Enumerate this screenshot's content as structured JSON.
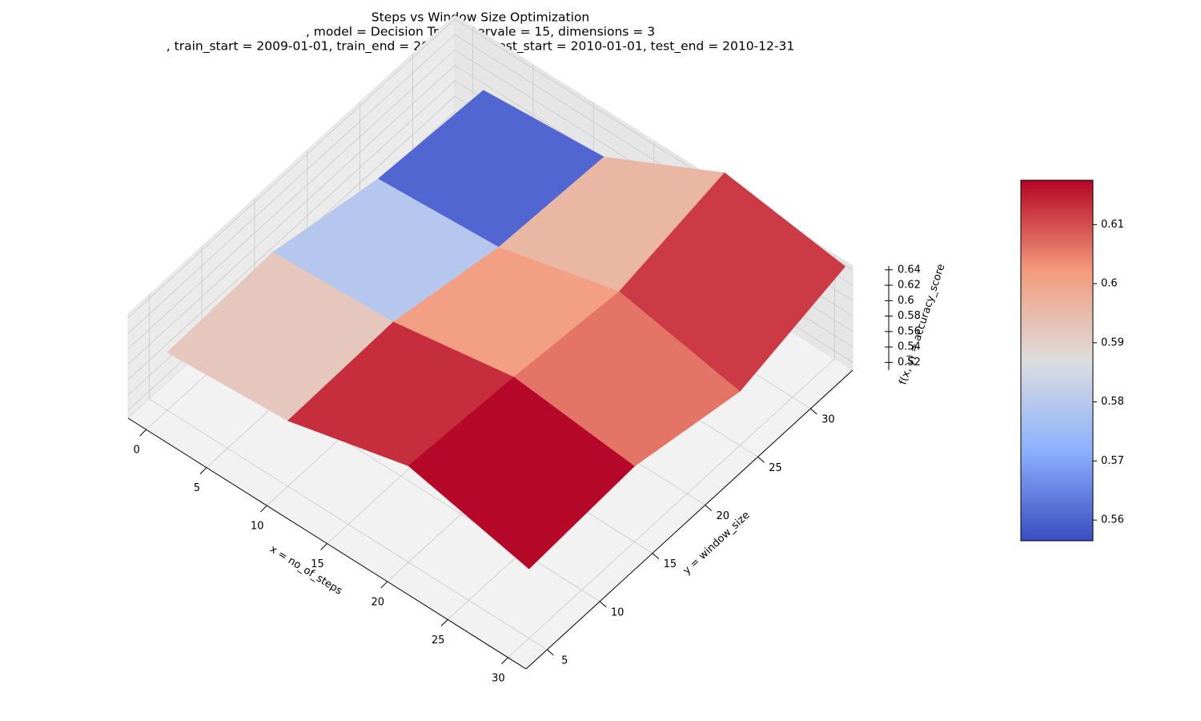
{
  "chart_data": {
    "type": "surface3d",
    "title": [
      "Steps vs Window Size Optimization",
      ", model = Decision Tree, intervale = 15, dimensions = 3",
      ", train_start = 2009-01-01, train_end = 2009-12-31, test_start = 2010-01-01, test_end = 2010-12-31"
    ],
    "x_label": "x = no_of_steps",
    "y_label": "y = window_size",
    "z_label": "f(x, y) = accuracy_score",
    "x": [
      0,
      10,
      20,
      30
    ],
    "y": [
      5,
      15,
      25,
      35
    ],
    "z": [
      [
        0.585,
        0.59,
        0.56,
        0.55
      ],
      [
        0.595,
        0.598,
        0.57,
        0.562
      ],
      [
        0.635,
        0.625,
        0.611,
        0.64
      ],
      [
        0.6,
        0.608,
        0.58,
        0.617
      ]
    ],
    "xlim": [
      -1.5,
      31.5
    ],
    "ylim": [
      3,
      34
    ],
    "zlim": [
      0.51,
      0.645
    ],
    "xticks": [
      0,
      5,
      10,
      15,
      20,
      25,
      30
    ],
    "yticks": [
      5,
      10,
      15,
      20,
      25,
      30
    ],
    "zticks": [
      0.52,
      0.54,
      0.56,
      0.58,
      0.6,
      0.62,
      0.64
    ],
    "colormap": "coolwarm",
    "clim": [
      0.5565,
      0.6175
    ],
    "colorbar_ticks": [
      0.56,
      0.57,
      0.58,
      0.59,
      0.6,
      0.61
    ]
  }
}
